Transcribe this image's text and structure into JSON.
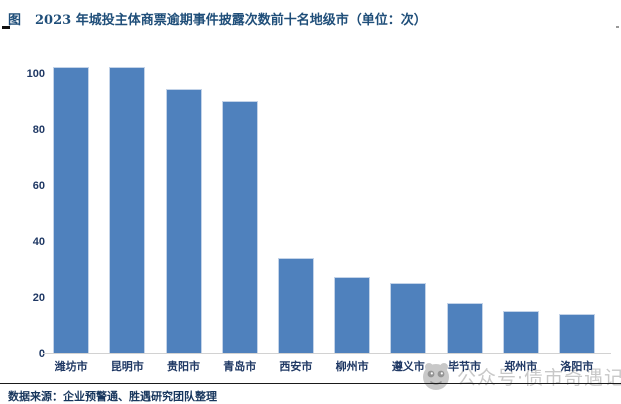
{
  "title": {
    "prefix": "图",
    "text": "2023 年城投主体商票逾期事件披露次数前十名地级市（单位：次）"
  },
  "source": "数据来源：企业预警通、胜遇研究团队整理",
  "watermark": {
    "text": "公众号·债市奇遇记",
    "logo": "panda-face-logo"
  },
  "colors": {
    "bar": "#4F81BD",
    "bar_border": "#C3D3E8",
    "title_text": "#1F4E79",
    "axis_text": "#1F3864",
    "source_text": "#17365D",
    "watermark": "#C6C6C6",
    "axis_line": "#D2D2D2"
  },
  "chart_data": {
    "type": "bar",
    "title": "2023 年城投主体商票逾期事件披露次数前十名地级市（单位：次）",
    "categories": [
      "潍坊市",
      "昆明市",
      "贵阳市",
      "青岛市",
      "西安市",
      "柳州市",
      "遵义市",
      "毕节市",
      "郑州市",
      "洛阳市"
    ],
    "values": [
      102,
      102,
      94,
      90,
      34,
      27,
      25,
      18,
      15,
      14
    ],
    "xlabel": "",
    "ylabel": "",
    "unit": "次",
    "ylim": [
      0,
      105
    ],
    "yticks": [
      0,
      20,
      40,
      60,
      80,
      100
    ],
    "grid": false,
    "legend": false
  }
}
